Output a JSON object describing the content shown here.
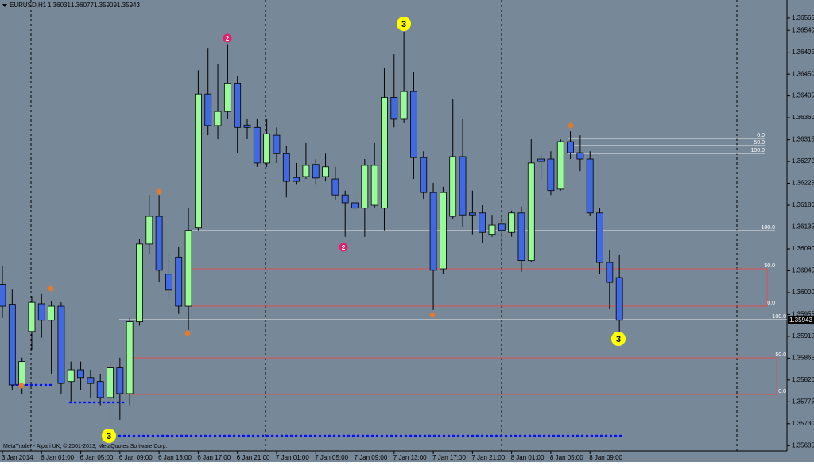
{
  "chart_data": {
    "type": "candlestick",
    "title": "EURUSD,H1",
    "footer": "MetaTrader - Alpari UK, © 2001-2013, MetaQuotes Software Corp.",
    "up_color": "#98fb98",
    "down_color": "#4169e1",
    "categories": [
      "3 Jan 2014",
      null,
      null,
      null,
      "6 Jan 01:00",
      null,
      null,
      null,
      "6 Jan 05:00",
      null,
      null,
      null,
      "6 Jan 09:00",
      null,
      null,
      null,
      "6 Jan 13:00",
      null,
      null,
      null,
      "6 Jan 17:00",
      null,
      null,
      null,
      "6 Jan 21:00",
      null,
      null,
      null,
      "7 Jan 01:00",
      null,
      null,
      null,
      "7 Jan 05:00",
      null,
      null,
      null,
      "7 Jan 09:00",
      null,
      null,
      null,
      "7 Jan 13:00",
      null,
      null,
      null,
      "7 Jan 17:00",
      null,
      null,
      null,
      "7 Jan 21:00",
      null,
      null,
      null,
      "8 Jan 01:00",
      null,
      null,
      null,
      "8 Jan 05:00",
      null,
      null,
      null,
      "8 Jan 09:00",
      null,
      null,
      null
    ],
    "open": [
      1.36017,
      1.35976,
      1.3581,
      1.3592,
      1.35977,
      1.35943,
      1.35972,
      1.35817,
      1.35841,
      1.35825,
      1.35817,
      1.35784,
      1.35845,
      1.35792,
      1.3594,
      1.361,
      1.36157,
      1.36038,
      1.36073,
      1.35972,
      1.36133,
      1.36409,
      1.36344,
      1.36373,
      1.3643,
      1.36345,
      1.3634,
      1.36267,
      1.36324,
      1.36286,
      1.36237,
      1.36239,
      1.36264,
      1.36239,
      1.36234,
      1.36201,
      1.36185,
      1.36174,
      1.3618,
      1.36174,
      1.36402,
      1.36357,
      1.36414,
      1.36278,
      1.36206,
      1.36049,
      1.36157,
      1.3628,
      1.36164,
      1.36164,
      1.3612,
      1.36141,
      1.36124,
      1.36164,
      1.36066,
      1.36275,
      1.36275,
      1.36213,
      1.36311,
      1.36288,
      1.36275,
      1.36164,
      1.36062,
      1.36031
    ],
    "high": [
      1.36055,
      1.36006,
      1.35866,
      1.35993,
      1.35997,
      1.35983,
      1.3598,
      1.35858,
      1.35858,
      1.35841,
      1.35833,
      1.35858,
      1.35866,
      1.35948,
      1.36111,
      1.36201,
      1.36201,
      1.36079,
      1.36095,
      1.36174,
      1.36458,
      1.36504,
      1.36471,
      1.36512,
      1.36447,
      1.36357,
      1.36357,
      1.36357,
      1.3634,
      1.36303,
      1.36267,
      1.36308,
      1.36275,
      1.36286,
      1.36259,
      1.3621,
      1.36201,
      1.36275,
      1.36308,
      1.36463,
      1.36491,
      1.36537,
      1.36455,
      1.36291,
      1.36226,
      1.36218,
      1.36398,
      1.36357,
      1.3621,
      1.3618,
      1.3616,
      1.3616,
      1.36169,
      1.36177,
      1.36316,
      1.36283,
      1.36291,
      1.36316,
      1.36332,
      1.36324,
      1.36291,
      1.36174,
      1.36087,
      1.36077
    ],
    "low": [
      1.35948,
      1.358,
      1.35792,
      1.35882,
      1.35907,
      1.35833,
      1.35792,
      1.35776,
      1.358,
      1.35784,
      1.35768,
      1.35727,
      1.35738,
      1.35768,
      1.35932,
      1.36079,
      1.36021,
      1.35989,
      1.35956,
      1.35923,
      1.36128,
      1.36324,
      1.36316,
      1.36357,
      1.36288,
      1.36316,
      1.36259,
      1.36259,
      1.36267,
      1.36196,
      1.36222,
      1.36234,
      1.36222,
      1.36229,
      1.3619,
      1.36115,
      1.36157,
      1.36115,
      1.36174,
      1.36128,
      1.3634,
      1.36349,
      1.36234,
      1.36193,
      1.35964,
      1.36038,
      1.36152,
      1.36136,
      1.3612,
      1.36103,
      1.36115,
      1.36079,
      1.36115,
      1.36043,
      1.36062,
      1.36234,
      1.36201,
      1.3621,
      1.36275,
      1.3625,
      1.36157,
      1.36038,
      1.35967,
      1.35909
    ],
    "close": [
      1.35972,
      1.3581,
      1.35858,
      1.3598,
      1.35943,
      1.35972,
      1.35813,
      1.35841,
      1.35825,
      1.35813,
      1.35784,
      1.35845,
      1.35792,
      1.3594,
      1.361,
      1.36157,
      1.36046,
      1.36005,
      1.35972,
      1.36128,
      1.36409,
      1.36344,
      1.36373,
      1.3643,
      1.3634,
      1.3634,
      1.36267,
      1.36327,
      1.36286,
      1.36229,
      1.36229,
      1.36262,
      1.36236,
      1.36259,
      1.36201,
      1.36185,
      1.36174,
      1.36262,
      1.36262,
      1.36402,
      1.36357,
      1.36414,
      1.36278,
      1.36206,
      1.36046,
      1.36206,
      1.3628,
      1.3616,
      1.3616,
      1.36124,
      1.36139,
      1.36128,
      1.36164,
      1.36066,
      1.36267,
      1.3627,
      1.3621,
      1.36311,
      1.36288,
      1.36275,
      1.36164,
      1.36062,
      1.36021,
      1.35943
    ],
    "ylim": [
      1.35674,
      1.36596
    ],
    "yticks": [
      1.36565,
      {
        "value": 1.3654,
        "label": "1.36540"
      },
      1.36495,
      {
        "value": 1.3645,
        "label": "1.36450"
      },
      1.36405,
      {
        "value": 1.3636,
        "label": "1.36360"
      },
      1.36315,
      {
        "value": 1.3627,
        "label": "1.36270"
      },
      1.36225,
      {
        "value": 1.3618,
        "label": "1.36180"
      },
      1.36135,
      {
        "value": 1.3609,
        "label": "1.36090"
      },
      1.36045,
      {
        "value": 1.36,
        "label": "1.36000"
      },
      1.35955,
      {
        "value": 1.3591,
        "label": "1.35910"
      },
      1.35865,
      {
        "value": 1.3582,
        "label": "1.35820"
      },
      1.35775,
      {
        "value": 1.3573,
        "label": "1.35730"
      },
      1.35685
    ],
    "annotations": [
      "3",
      "3",
      "3",
      "2",
      "2",
      "0.0",
      "50.0",
      "100.0",
      "100.0",
      "50.0",
      "0.0",
      "100.0",
      "50.0",
      "0.0"
    ]
  }
}
